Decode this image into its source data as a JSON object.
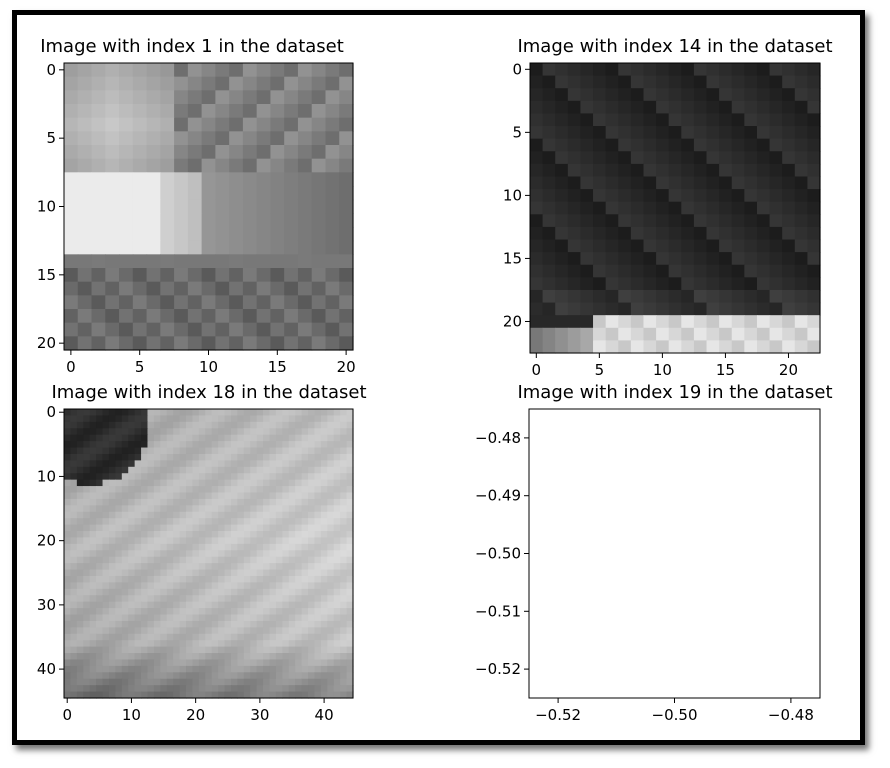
{
  "figure": {
    "panels": [
      {
        "title": "Image with index 1 in the dataset",
        "xticks": [
          "0",
          "5",
          "10",
          "15",
          "20"
        ],
        "yticks": [
          "0",
          "5",
          "10",
          "15",
          "20"
        ]
      },
      {
        "title": "Image with index 14 in the dataset",
        "xticks": [
          "0",
          "5",
          "10",
          "15",
          "20"
        ],
        "yticks": [
          "0",
          "5",
          "10",
          "15",
          "20"
        ]
      },
      {
        "title": "Image with index 18 in the dataset",
        "xticks": [
          "0",
          "10",
          "20",
          "30",
          "40"
        ],
        "yticks": [
          "0",
          "10",
          "20",
          "30",
          "40"
        ]
      },
      {
        "title": "Image with index 19 in the dataset",
        "xticks": [
          "−0.52",
          "−0.50",
          "−0.48"
        ],
        "yticks": [
          "−0.48",
          "−0.49",
          "−0.50",
          "−0.51",
          "−0.52"
        ]
      }
    ]
  },
  "chart_data": [
    {
      "type": "heatmap",
      "title": "Image with index 1 in the dataset",
      "colormap": "gray",
      "shape": [
        21,
        21
      ],
      "x_range": [
        -0.5,
        20.5
      ],
      "y_range": [
        20.5,
        -0.5
      ],
      "xticks": [
        0,
        5,
        10,
        15,
        20
      ],
      "yticks": [
        0,
        5,
        10,
        15,
        20
      ]
    },
    {
      "type": "heatmap",
      "title": "Image with index 14 in the dataset",
      "colormap": "gray",
      "shape": [
        23,
        23
      ],
      "x_range": [
        -0.5,
        22.5
      ],
      "y_range": [
        22.5,
        -0.5
      ],
      "xticks": [
        0,
        5,
        10,
        15,
        20
      ],
      "yticks": [
        0,
        5,
        10,
        15,
        20
      ]
    },
    {
      "type": "heatmap",
      "title": "Image with index 18 in the dataset",
      "colormap": "gray",
      "shape": [
        45,
        45
      ],
      "x_range": [
        -0.5,
        44.5
      ],
      "y_range": [
        44.5,
        -0.5
      ],
      "xticks": [
        0,
        10,
        20,
        30,
        40
      ],
      "yticks": [
        0,
        10,
        20,
        30,
        40
      ]
    },
    {
      "type": "scatter",
      "title": "Image with index 19 in the dataset",
      "x": [],
      "y": [],
      "xlim": [
        -0.525,
        -0.475
      ],
      "ylim": [
        -0.525,
        -0.475
      ],
      "xticks": [
        -0.52,
        -0.5,
        -0.48
      ],
      "yticks": [
        -0.48,
        -0.49,
        -0.5,
        -0.51,
        -0.52
      ]
    }
  ]
}
